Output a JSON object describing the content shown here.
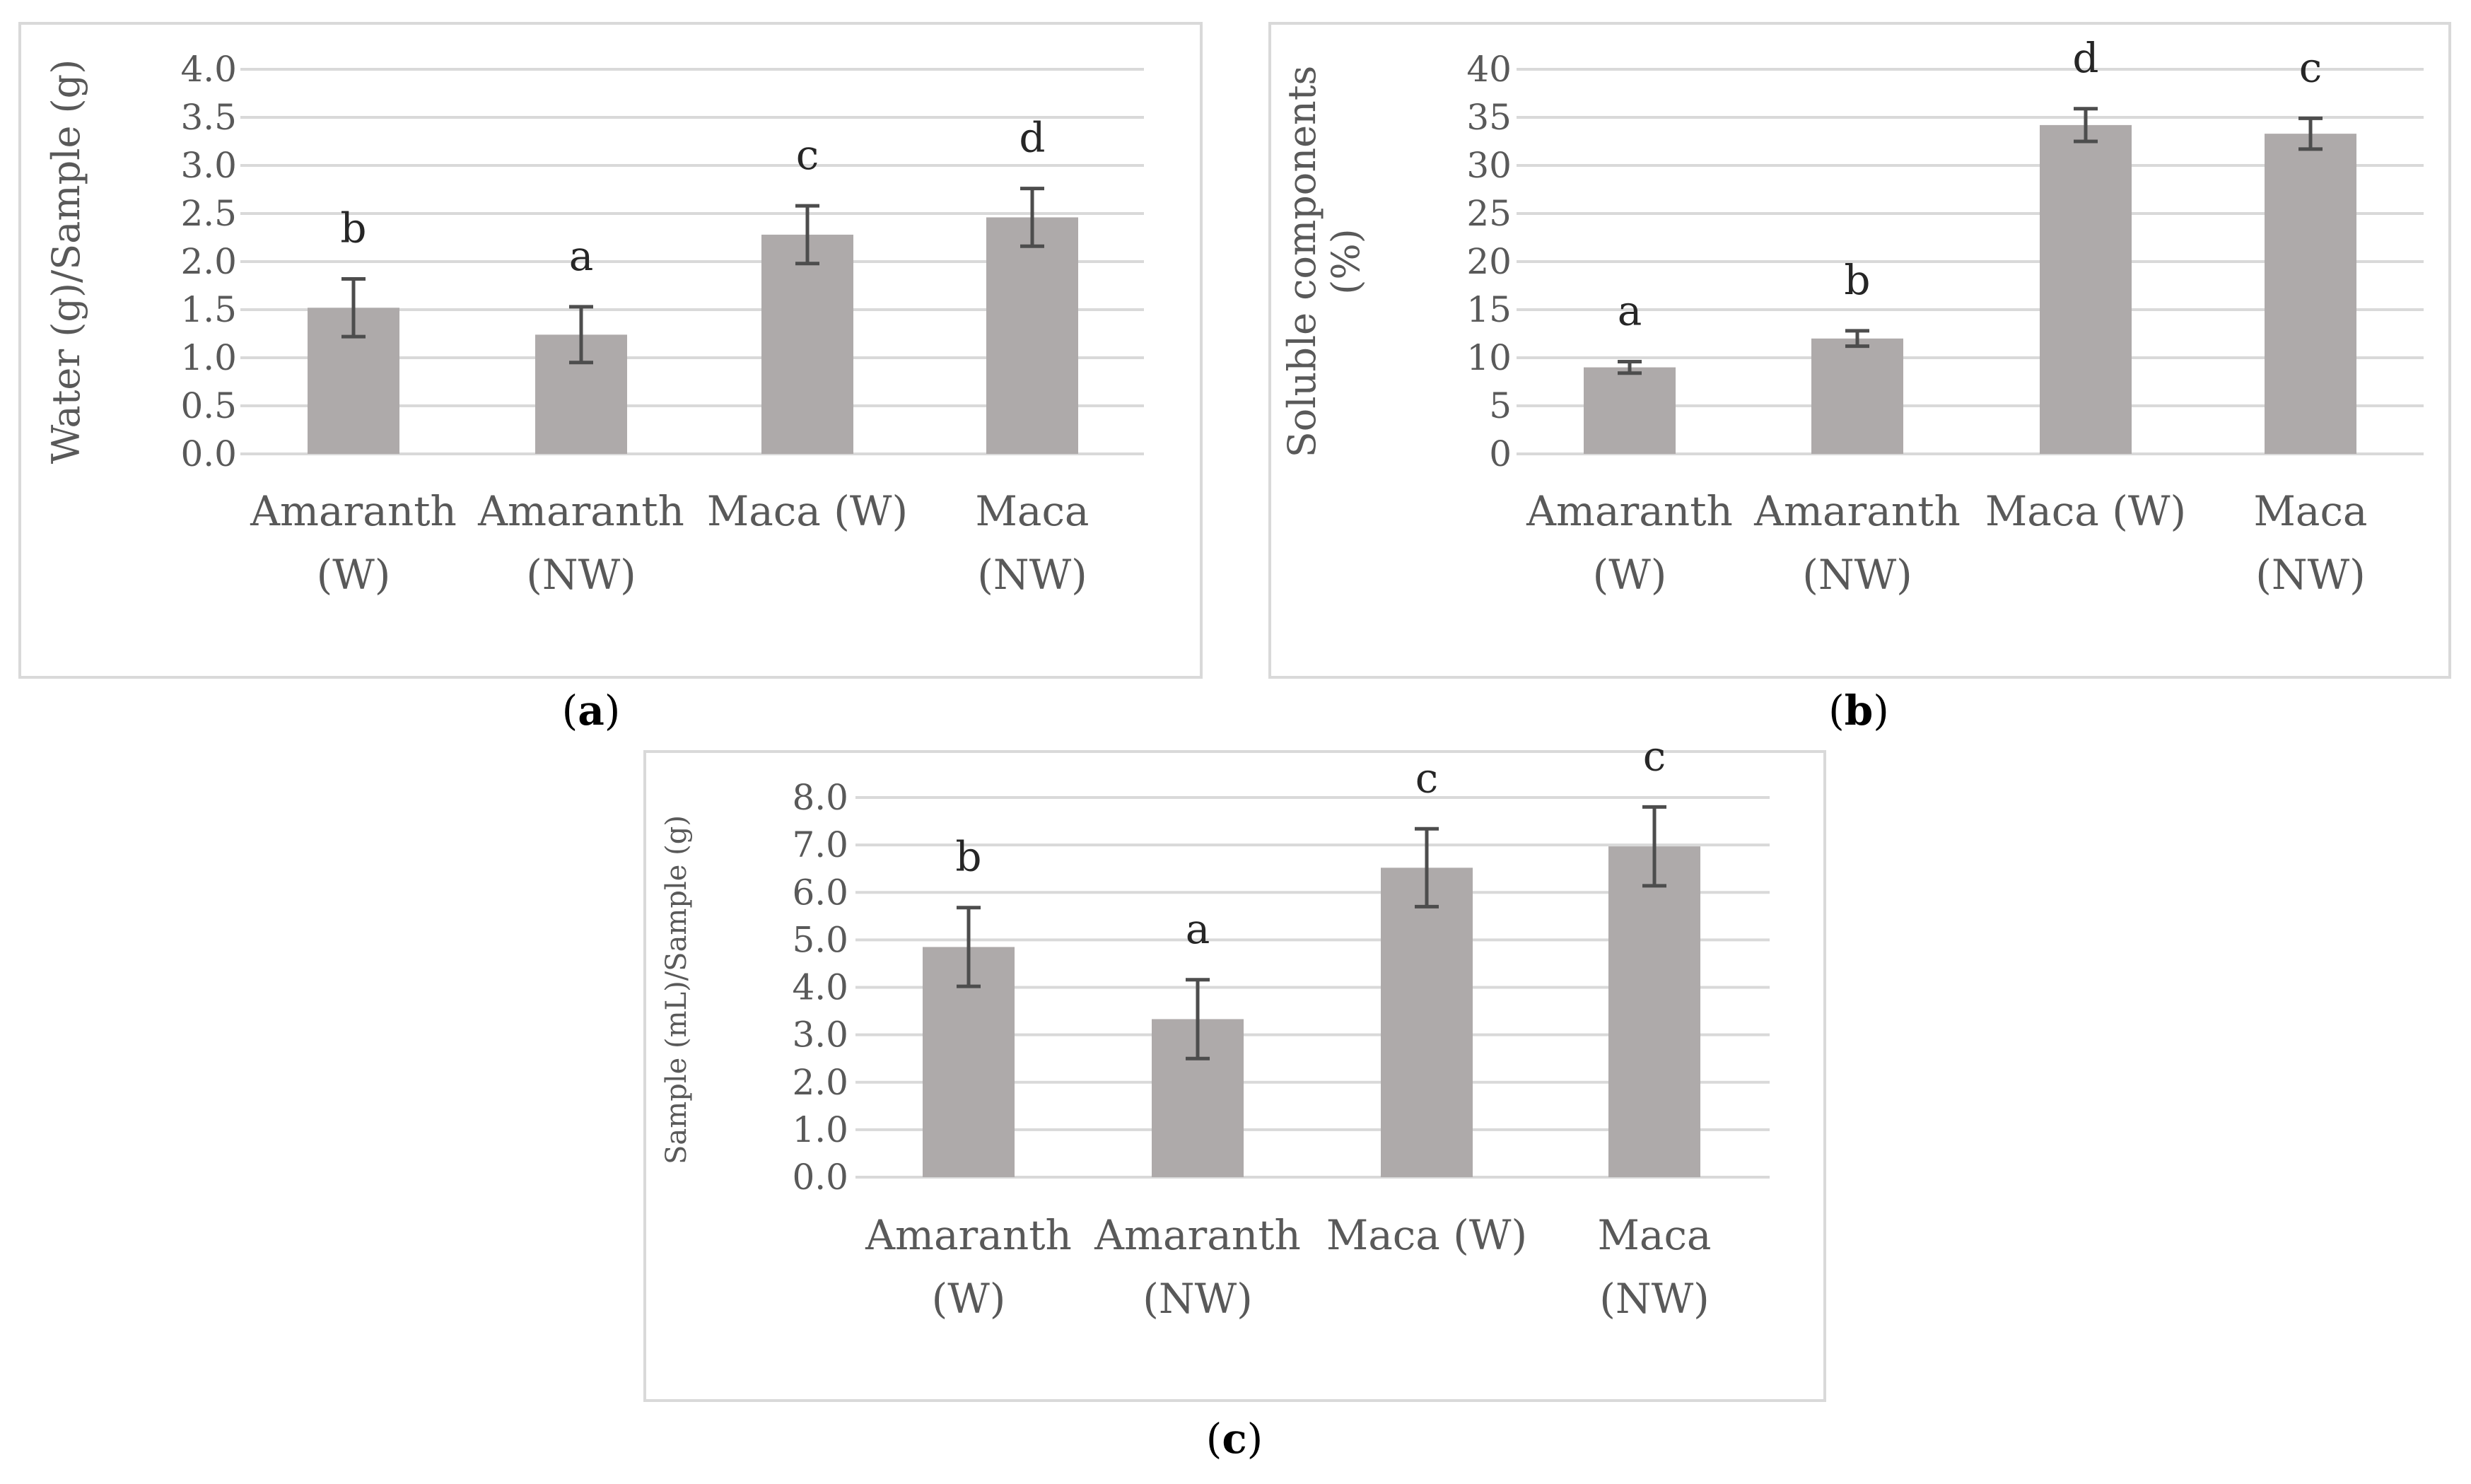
{
  "figure": {
    "colors": {
      "bar": "#aeaaaa",
      "grid": "#d9d9d9",
      "axis_text": "#595959",
      "error_bar": "#4d4d4d",
      "frame": "#d9d9d9",
      "letter": "#262626",
      "caption": "#000000"
    }
  },
  "chart_data": [
    {
      "id": "a",
      "type": "bar",
      "caption": "a",
      "title": "",
      "xlabel": "",
      "ylabel": "Water (g)/Sample (g)",
      "categories": [
        [
          "Amaranth",
          "(W)"
        ],
        [
          "Amaranth",
          "(NW)"
        ],
        [
          "Maca (W)"
        ],
        [
          "Maca",
          "(NW)"
        ]
      ],
      "values": [
        1.52,
        1.24,
        2.28,
        2.46
      ],
      "errors": [
        0.3,
        0.29,
        0.3,
        0.3
      ],
      "significance": [
        "b",
        "a",
        "c",
        "d"
      ],
      "ylim": [
        0,
        4.0
      ],
      "yticks": [
        "0.0",
        "0.5",
        "1.0",
        "1.5",
        "2.0",
        "2.5",
        "3.0",
        "3.5",
        "4.0"
      ],
      "grid": true,
      "legend": "none"
    },
    {
      "id": "b",
      "type": "bar",
      "caption": "b",
      "title": "",
      "xlabel": "",
      "ylabel": [
        "Soluble components",
        "(%)"
      ],
      "categories": [
        [
          "Amaranth",
          "(W)"
        ],
        [
          "Amaranth",
          "(NW)"
        ],
        [
          "Maca (W)"
        ],
        [
          "Maca",
          "(NW)"
        ]
      ],
      "values": [
        9.0,
        12.0,
        34.2,
        33.3
      ],
      "errors": [
        0.6,
        0.8,
        1.7,
        1.6
      ],
      "significance": [
        "a",
        "b",
        "d",
        "c"
      ],
      "ylim": [
        0,
        40
      ],
      "yticks": [
        "0",
        "5",
        "10",
        "15",
        "20",
        "25",
        "30",
        "35",
        "40"
      ],
      "grid": true,
      "legend": "none"
    },
    {
      "id": "c",
      "type": "bar",
      "caption": "c",
      "title": "",
      "xlabel": "",
      "ylabel": "Sample (mL)/Sample (g)",
      "categories": [
        [
          "Amaranth",
          "(W)"
        ],
        [
          "Amaranth",
          "(NW)"
        ],
        [
          "Maca (W)"
        ],
        [
          "Maca",
          "(NW)"
        ]
      ],
      "values": [
        4.85,
        3.33,
        6.52,
        6.97
      ],
      "errors": [
        0.83,
        0.83,
        0.82,
        0.83
      ],
      "significance": [
        "b",
        "a",
        "c",
        "c"
      ],
      "ylim": [
        0,
        8.0
      ],
      "yticks": [
        "0.0",
        "1.0",
        "2.0",
        "3.0",
        "4.0",
        "5.0",
        "6.0",
        "7.0",
        "8.0"
      ],
      "grid": true,
      "legend": "none"
    }
  ]
}
